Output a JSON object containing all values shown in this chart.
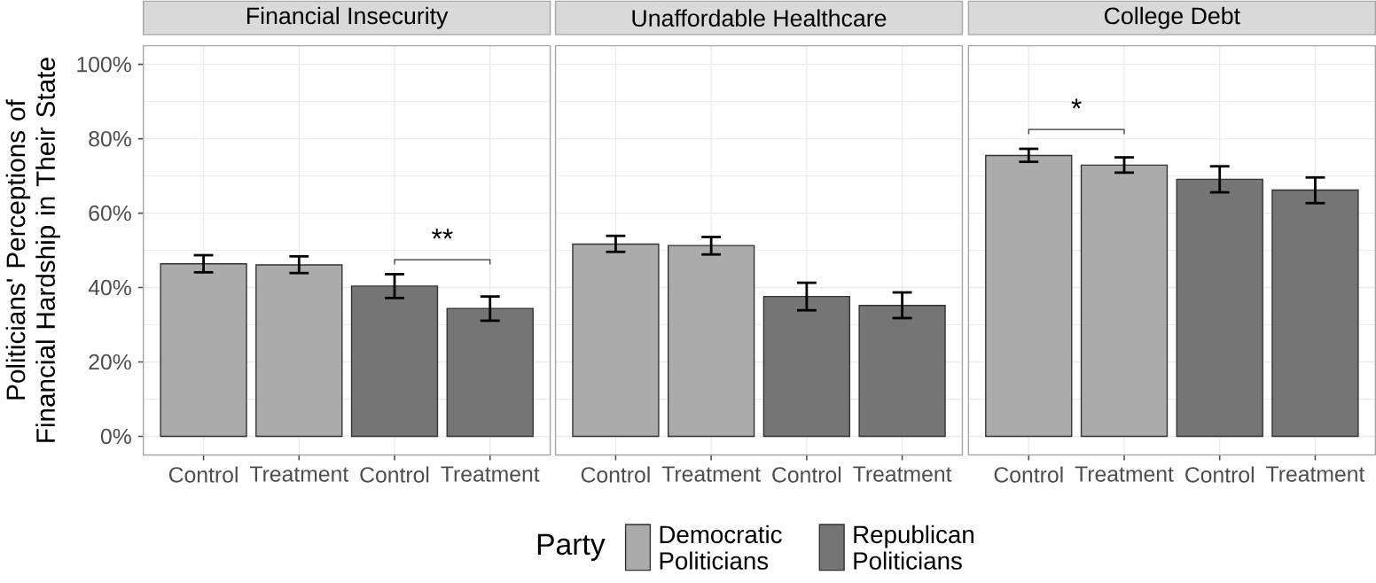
{
  "chart_data": [
    {
      "type": "bar",
      "title": "Financial Insecurity",
      "ylabel": "Politicians' Perceptions of Financial Hardship in Their State",
      "categories": [
        "Control",
        "Treatment",
        "Control",
        "Treatment"
      ],
      "series": [
        {
          "color": "#ababab",
          "values": [
            46.4,
            46.1,
            null,
            null
          ],
          "errors": [
            [
              44.1,
              48.7
            ],
            [
              43.9,
              48.4
            ],
            null,
            null
          ]
        },
        {
          "color": "#757575",
          "values": [
            null,
            null,
            40.4,
            34.4
          ],
          "errors": [
            null,
            null,
            [
              37.2,
              43.6
            ],
            [
              31.1,
              37.6
            ]
          ]
        }
      ],
      "ylim": [
        -5,
        105
      ],
      "yticks": [
        {
          "value": 0,
          "label": "0%"
        },
        {
          "value": 20,
          "label": "20%"
        },
        {
          "value": 40,
          "label": "40%"
        },
        {
          "value": 60,
          "label": "60%"
        },
        {
          "value": 80,
          "label": "80%"
        },
        {
          "value": 100,
          "label": "100%"
        }
      ],
      "grid": true,
      "annotations": [
        "**"
      ]
    },
    {
      "type": "bar",
      "title": "Unaffordable Healthcare",
      "legend_title": "Party",
      "legend": "bottom",
      "categories": [
        "Control",
        "Treatment",
        "Control",
        "Treatment"
      ],
      "series": [
        {
          "name": "Democratic Politicians",
          "color": "#ababab",
          "values": [
            51.7,
            51.3,
            null,
            null
          ],
          "errors": [
            [
              49.6,
              53.9
            ],
            [
              48.9,
              53.6
            ],
            null,
            null
          ]
        },
        {
          "name": "Republican Politicians",
          "color": "#757575",
          "values": [
            null,
            null,
            37.6,
            35.2
          ],
          "errors": [
            null,
            null,
            [
              33.9,
              41.3
            ],
            [
              31.8,
              38.7
            ]
          ]
        }
      ],
      "ylim": [
        -5,
        105
      ],
      "yticks": [
        0,
        20,
        40,
        60,
        80,
        100
      ],
      "grid": true,
      "tick_labels": "x"
    },
    {
      "type": "bar",
      "title": "College Debt",
      "categories": [
        "Control",
        "Treatment",
        "Control",
        "Treatment"
      ],
      "series": [
        {
          "color": "#ababab",
          "values": [
            75.5,
            72.9,
            null,
            null
          ],
          "errors": [
            [
              73.8,
              77.3
            ],
            [
              70.9,
              75.0
            ],
            null,
            null
          ]
        },
        {
          "color": "#757575",
          "values": [
            null,
            null,
            69.1,
            66.2
          ],
          "errors": [
            null,
            null,
            [
              65.6,
              72.6
            ],
            [
              62.7,
              69.6
            ]
          ]
        }
      ],
      "ylim": [
        -5,
        105
      ],
      "yticks": [
        0,
        20,
        40,
        60,
        80,
        100
      ],
      "grid": true,
      "tick_labels": "x",
      "annotations": [
        "*"
      ]
    }
  ]
}
